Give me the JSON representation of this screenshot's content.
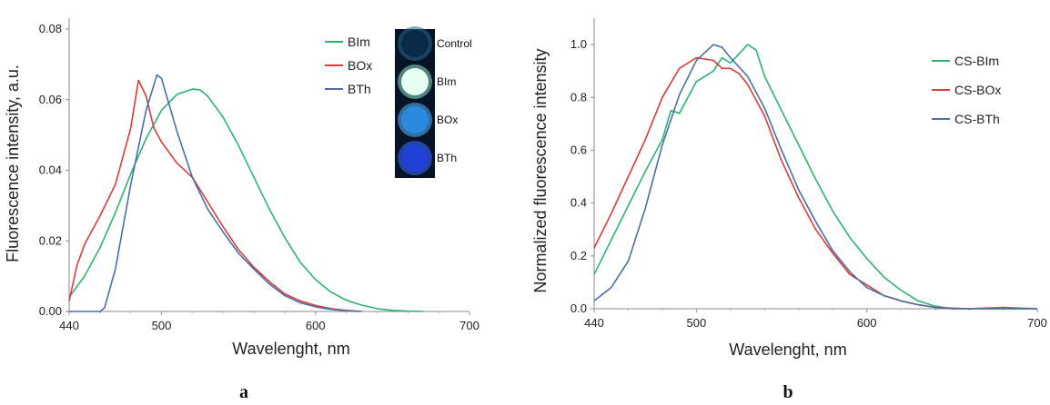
{
  "chart_data": [
    {
      "panel": "a",
      "type": "line",
      "xlabel": "Wavelenght, nm",
      "ylabel": "Fluorescence intensity, a.u.",
      "xlim": [
        440,
        700
      ],
      "ylim": [
        0,
        0.08
      ],
      "x_ticks": [
        "440",
        "500",
        "600",
        "700"
      ],
      "y_ticks": [
        "0.00",
        "0.02",
        "0.04",
        "0.06",
        "0.08"
      ],
      "series": [
        {
          "name": "BIm",
          "color": "#2db36f",
          "points": [
            [
              440,
              0.004
            ],
            [
              450,
              0.01
            ],
            [
              460,
              0.018
            ],
            [
              470,
              0.028
            ],
            [
              480,
              0.039
            ],
            [
              490,
              0.049
            ],
            [
              500,
              0.057
            ],
            [
              510,
              0.0615
            ],
            [
              520,
              0.063
            ],
            [
              525,
              0.0628
            ],
            [
              530,
              0.061
            ],
            [
              540,
              0.055
            ],
            [
              550,
              0.047
            ],
            [
              560,
              0.038
            ],
            [
              570,
              0.029
            ],
            [
              580,
              0.021
            ],
            [
              590,
              0.014
            ],
            [
              600,
              0.009
            ],
            [
              610,
              0.0055
            ],
            [
              620,
              0.0032
            ],
            [
              630,
              0.0018
            ],
            [
              640,
              0.0008
            ],
            [
              650,
              0.0003
            ],
            [
              660,
              0.0001
            ],
            [
              670,
              0
            ]
          ]
        },
        {
          "name": "BOx",
          "color": "#d93b3b",
          "points": [
            [
              440,
              0.003
            ],
            [
              445,
              0.013
            ],
            [
              450,
              0.019
            ],
            [
              460,
              0.027
            ],
            [
              470,
              0.036
            ],
            [
              480,
              0.052
            ],
            [
              485,
              0.0655
            ],
            [
              490,
              0.061
            ],
            [
              495,
              0.052
            ],
            [
              500,
              0.048
            ],
            [
              510,
              0.042
            ],
            [
              520,
              0.038
            ],
            [
              530,
              0.031
            ],
            [
              540,
              0.024
            ],
            [
              550,
              0.0175
            ],
            [
              560,
              0.0125
            ],
            [
              570,
              0.0085
            ],
            [
              580,
              0.005
            ],
            [
              590,
              0.003
            ],
            [
              600,
              0.0017
            ],
            [
              610,
              0.0008
            ],
            [
              620,
              0.0003
            ],
            [
              630,
              0
            ]
          ]
        },
        {
          "name": "BTh",
          "color": "#4a6fa5",
          "points": [
            [
              440,
              0
            ],
            [
              460,
              0
            ],
            [
              463,
              0.001
            ],
            [
              470,
              0.012
            ],
            [
              480,
              0.036
            ],
            [
              490,
              0.057
            ],
            [
              497,
              0.067
            ],
            [
              500,
              0.066
            ],
            [
              510,
              0.051
            ],
            [
              520,
              0.038
            ],
            [
              530,
              0.029
            ],
            [
              540,
              0.0225
            ],
            [
              550,
              0.0165
            ],
            [
              560,
              0.012
            ],
            [
              570,
              0.0078
            ],
            [
              580,
              0.0045
            ],
            [
              590,
              0.0025
            ],
            [
              600,
              0.0013
            ],
            [
              610,
              0.0006
            ],
            [
              620,
              0.0002
            ],
            [
              630,
              0
            ]
          ]
        }
      ],
      "legend": {
        "position": "top-right"
      },
      "inset": {
        "wells": [
          "Control",
          "BIm",
          "BOx",
          "BTh"
        ]
      }
    },
    {
      "panel": "b",
      "type": "line",
      "xlabel": "Wavelenght, nm",
      "ylabel": "Normalized fluorescence intensity",
      "xlim": [
        440,
        700
      ],
      "ylim": [
        0,
        1.1
      ],
      "x_ticks": [
        "440",
        "500",
        "600",
        "700"
      ],
      "y_ticks": [
        "0.0",
        "0.2",
        "0.4",
        "0.6",
        "0.8",
        "1.0"
      ],
      "series": [
        {
          "name": "CS-BIm",
          "color": "#2db36f",
          "points": [
            [
              440,
              0.13
            ],
            [
              450,
              0.26
            ],
            [
              460,
              0.39
            ],
            [
              470,
              0.52
            ],
            [
              480,
              0.64
            ],
            [
              485,
              0.75
            ],
            [
              490,
              0.74
            ],
            [
              495,
              0.8
            ],
            [
              500,
              0.86
            ],
            [
              510,
              0.9
            ],
            [
              515,
              0.95
            ],
            [
              520,
              0.93
            ],
            [
              530,
              1.0
            ],
            [
              535,
              0.98
            ],
            [
              540,
              0.88
            ],
            [
              550,
              0.75
            ],
            [
              560,
              0.62
            ],
            [
              570,
              0.49
            ],
            [
              580,
              0.37
            ],
            [
              590,
              0.27
            ],
            [
              600,
              0.19
            ],
            [
              610,
              0.12
            ],
            [
              620,
              0.07
            ],
            [
              630,
              0.03
            ],
            [
              640,
              0.01
            ],
            [
              650,
              0
            ],
            [
              700,
              0
            ]
          ]
        },
        {
          "name": "CS-BOx",
          "color": "#d93b3b",
          "points": [
            [
              440,
              0.23
            ],
            [
              450,
              0.36
            ],
            [
              460,
              0.5
            ],
            [
              470,
              0.64
            ],
            [
              480,
              0.8
            ],
            [
              490,
              0.91
            ],
            [
              500,
              0.95
            ],
            [
              510,
              0.94
            ],
            [
              515,
              0.91
            ],
            [
              520,
              0.91
            ],
            [
              525,
              0.89
            ],
            [
              530,
              0.85
            ],
            [
              540,
              0.73
            ],
            [
              550,
              0.56
            ],
            [
              560,
              0.42
            ],
            [
              570,
              0.3
            ],
            [
              580,
              0.21
            ],
            [
              590,
              0.13
            ],
            [
              600,
              0.09
            ],
            [
              610,
              0.05
            ],
            [
              620,
              0.03
            ],
            [
              630,
              0.015
            ],
            [
              640,
              0.005
            ],
            [
              660,
              0
            ],
            [
              680,
              0.005
            ],
            [
              700,
              0
            ]
          ]
        },
        {
          "name": "CS-BTh",
          "color": "#4a6fa5",
          "points": [
            [
              440,
              0.03
            ],
            [
              450,
              0.08
            ],
            [
              460,
              0.18
            ],
            [
              470,
              0.38
            ],
            [
              480,
              0.62
            ],
            [
              490,
              0.81
            ],
            [
              500,
              0.94
            ],
            [
              510,
              1.0
            ],
            [
              515,
              0.99
            ],
            [
              520,
              0.95
            ],
            [
              530,
              0.88
            ],
            [
              540,
              0.76
            ],
            [
              550,
              0.6
            ],
            [
              560,
              0.45
            ],
            [
              570,
              0.33
            ],
            [
              580,
              0.22
            ],
            [
              590,
              0.14
            ],
            [
              600,
              0.08
            ],
            [
              610,
              0.05
            ],
            [
              620,
              0.03
            ],
            [
              630,
              0.015
            ],
            [
              640,
              0.005
            ],
            [
              650,
              0
            ],
            [
              700,
              0
            ]
          ]
        }
      ],
      "legend": {
        "position": "top-right"
      }
    }
  ]
}
